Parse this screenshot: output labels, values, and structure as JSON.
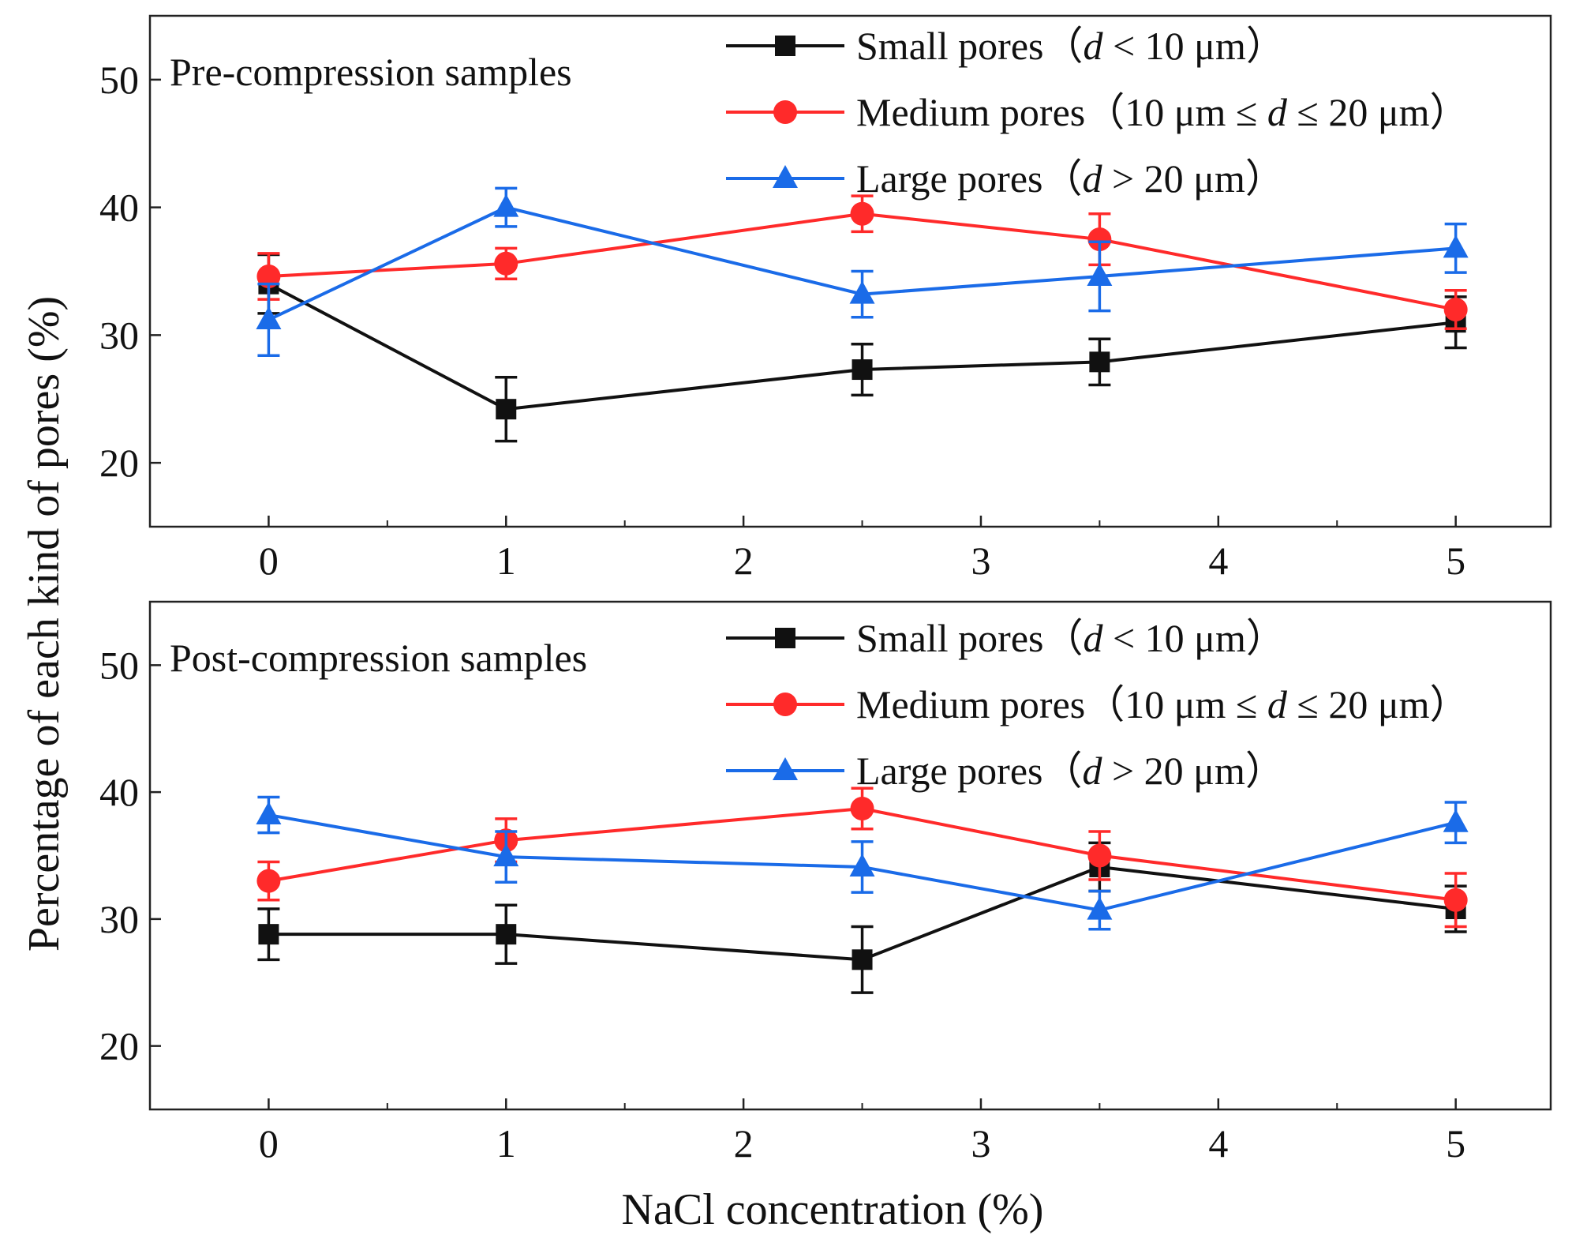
{
  "chart_data": [
    {
      "type": "line",
      "title": "Pre-compression samples",
      "xlabel": "",
      "ylabel": "Percentage of each kind of pores (%)",
      "xlim": [
        -0.5,
        5.4
      ],
      "ylim": [
        15,
        55
      ],
      "xticks": [
        0,
        1,
        2,
        3,
        4,
        5
      ],
      "yticks": [
        20,
        30,
        40,
        50
      ],
      "legend_position": "top-right",
      "x": [
        0,
        1,
        2.5,
        3.5,
        5
      ],
      "series": [
        {
          "name": "Small pores（d < 10 μm）",
          "prefix": "Small pores（",
          "d": "d",
          "suffix": " < 10 μm）",
          "color": "#111111",
          "marker": "square",
          "values": [
            34.0,
            24.2,
            27.3,
            27.9,
            31.0
          ],
          "errors": [
            2.3,
            2.5,
            2.0,
            1.8,
            2.0
          ]
        },
        {
          "name": "Medium pores（10 μm ≤ d ≤ 20 μm）",
          "prefix": "Medium pores（10 μm ≤ ",
          "d": "d",
          "suffix": " ≤ 20 μm）",
          "color": "#ff2a2a",
          "marker": "circle",
          "values": [
            34.6,
            35.6,
            39.5,
            37.5,
            32.0
          ],
          "errors": [
            1.8,
            1.2,
            1.4,
            2.0,
            1.5
          ]
        },
        {
          "name": "Large pores（d > 20 μm）",
          "prefix": "Large pores（",
          "d": "d",
          "suffix": " > 20 μm）",
          "color": "#1a6be8",
          "marker": "triangle",
          "values": [
            31.2,
            40.0,
            33.2,
            34.6,
            36.8
          ],
          "errors": [
            2.8,
            1.5,
            1.8,
            2.7,
            1.9
          ]
        }
      ]
    },
    {
      "type": "line",
      "title": "Post-compression samples",
      "xlabel": "NaCl concentration (%)",
      "ylabel": "Percentage of each kind of pores (%)",
      "xlim": [
        -0.5,
        5.4
      ],
      "ylim": [
        15,
        55
      ],
      "xticks": [
        0,
        1,
        2,
        3,
        4,
        5
      ],
      "yticks": [
        20,
        30,
        40,
        50
      ],
      "legend_position": "top-right",
      "x": [
        0,
        1,
        2.5,
        3.5,
        5
      ],
      "series": [
        {
          "name": "Small pores（d < 10 μm）",
          "prefix": "Small pores（",
          "d": "d",
          "suffix": " < 10 μm）",
          "color": "#111111",
          "marker": "square",
          "values": [
            28.8,
            28.8,
            26.8,
            34.1,
            30.8
          ],
          "errors": [
            2.0,
            2.3,
            2.6,
            1.9,
            1.8
          ]
        },
        {
          "name": "Medium pores（10 μm ≤ d ≤ 20 μm）",
          "prefix": "Medium pores（10 μm ≤ ",
          "d": "d",
          "suffix": " ≤ 20 μm）",
          "color": "#ff2a2a",
          "marker": "circle",
          "values": [
            33.0,
            36.2,
            38.7,
            35.0,
            31.5
          ],
          "errors": [
            1.5,
            1.7,
            1.6,
            1.9,
            2.1
          ]
        },
        {
          "name": "Large pores（d > 20 μm）",
          "prefix": "Large pores（",
          "d": "d",
          "suffix": " > 20 μm）",
          "color": "#1a6be8",
          "marker": "triangle",
          "values": [
            38.2,
            34.9,
            34.1,
            30.7,
            37.6
          ],
          "errors": [
            1.4,
            2.0,
            2.0,
            1.5,
            1.6
          ]
        }
      ]
    }
  ]
}
